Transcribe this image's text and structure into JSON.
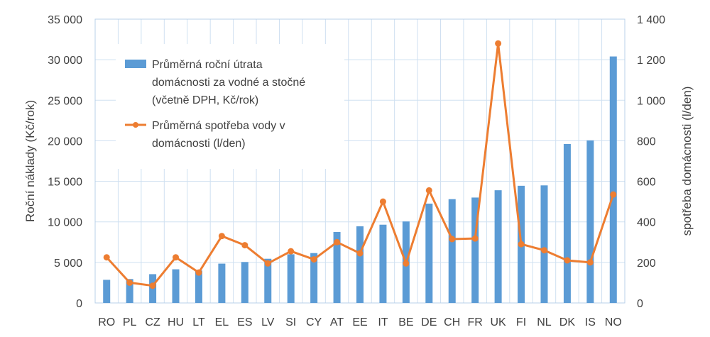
{
  "chart_data": {
    "type": "bar",
    "categories": [
      "RO",
      "PL",
      "CZ",
      "HU",
      "LT",
      "EL",
      "ES",
      "LV",
      "SI",
      "CY",
      "AT",
      "EE",
      "IT",
      "BE",
      "DE",
      "CH",
      "FR",
      "UK",
      "FI",
      "NL",
      "DK",
      "IS",
      "NO"
    ],
    "series": [
      {
        "name": "Průměrná roční útrata domácnosti za vodné a stočné (včetně DPH, Kč/rok)",
        "type": "bar",
        "axis": "left",
        "color": "#5b9bd5",
        "values": [
          2850,
          2950,
          3550,
          4150,
          4000,
          4850,
          5050,
          5450,
          6000,
          6150,
          8750,
          9450,
          9650,
          10050,
          12250,
          12800,
          13000,
          13900,
          14450,
          14500,
          19600,
          20050,
          30400
        ]
      },
      {
        "name": "Průměrná spotřeba vody v domácnosti (l/den)",
        "type": "line",
        "axis": "right",
        "color": "#ed7d31",
        "values": [
          225,
          100,
          85,
          225,
          150,
          330,
          285,
          195,
          255,
          215,
          300,
          245,
          500,
          195,
          555,
          315,
          318,
          1280,
          290,
          260,
          210,
          200,
          535
        ]
      }
    ],
    "yleft": {
      "label": "Roční náklady (Kč/rok)",
      "range": [
        0,
        35000
      ],
      "ticks": [
        "0",
        "5 000",
        "10 000",
        "15 000",
        "20 000",
        "25 000",
        "30 000",
        "35 000"
      ]
    },
    "yright": {
      "label": "spotřeba domácnosti (l/den)",
      "range": [
        0,
        1400
      ],
      "ticks": [
        "0",
        "200",
        "400",
        "600",
        "800",
        "1 000",
        "1 200",
        "1 400"
      ]
    },
    "grid": true,
    "legend": {
      "placement": "top-left",
      "bar_lines": [
        "Průměrná roční útrata",
        "domácnosti za vodné a stočné",
        "(včetně DPH, Kč/rok)"
      ],
      "line_lines": [
        "Průměrná spotřeba vody v",
        "domácnosti  (l/den)"
      ]
    }
  }
}
